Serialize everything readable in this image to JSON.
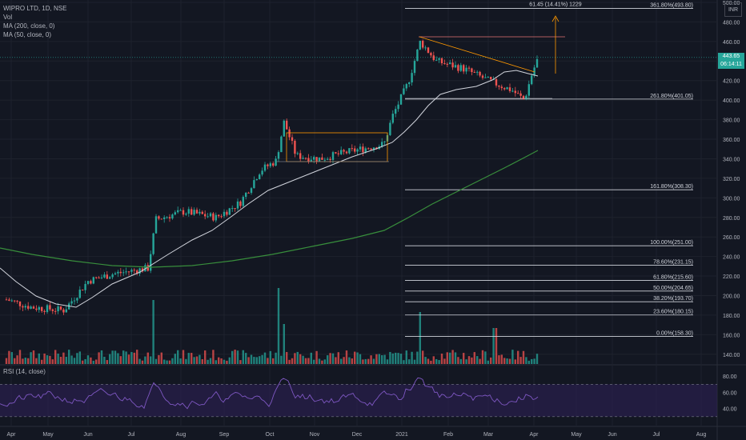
{
  "header": {
    "symbol": "WIPRO LTD, 1D, NSE",
    "vol_label": "Vol",
    "ma200_label": "MA (200, close, 0)",
    "ma50_label": "MA (50, close, 0)",
    "rsi_label": "RSI (14, close)",
    "currency_button": "INR"
  },
  "price_tag": {
    "price": "443.65",
    "countdown": "06:14:11"
  },
  "colors": {
    "background": "#131722",
    "up": "#26a69a",
    "down": "#ef5350",
    "ma50": "#d1d4dc",
    "ma200": "#388e3c",
    "rsi": "#7e57c2",
    "rsi_band": "#2a1f4d",
    "pattern": "#ff9800",
    "fib_line": "#d1d4dc"
  },
  "chart_data": {
    "type": "candlestick",
    "price_axis": {
      "ticks": [
        "500.00",
        "480.00",
        "460.00",
        "440.00",
        "420.00",
        "400.00",
        "380.00",
        "360.00",
        "340.00",
        "320.00",
        "300.00",
        "280.00",
        "260.00",
        "240.00",
        "220.00",
        "200.00",
        "180.00",
        "160.00",
        "140.00"
      ],
      "values": [
        500,
        480,
        460,
        440,
        420,
        400,
        380,
        360,
        340,
        320,
        300,
        280,
        260,
        240,
        220,
        200,
        180,
        160,
        140
      ]
    },
    "rsi_axis": {
      "ticks": [
        "80.00",
        "60.00",
        "40.00"
      ],
      "values": [
        80,
        60,
        40
      ],
      "upper_band": 70,
      "lower_band": 30
    },
    "time_axis": [
      "Apr",
      "May",
      "Jun",
      "Jul",
      "Aug",
      "Sep",
      "Oct",
      "Nov",
      "Dec",
      "2021",
      "Feb",
      "Mar",
      "Apr",
      "May",
      "Jun",
      "Jul",
      "Aug"
    ],
    "fibonacci": [
      {
        "label": "361.80%(493.80)",
        "value": 493.8
      },
      {
        "label": "261.80%(401.05)",
        "value": 401.05
      },
      {
        "label": "161.80%(308.30)",
        "value": 308.3
      },
      {
        "label": "100.00%(251.00)",
        "value": 251.0
      },
      {
        "label": "78.60%(231.15)",
        "value": 231.15
      },
      {
        "label": "61.80%(215.60)",
        "value": 215.6
      },
      {
        "label": "50.00%(204.65)",
        "value": 204.65
      },
      {
        "label": "38.20%(193.70)",
        "value": 193.7
      },
      {
        "label": "23.60%(180.15)",
        "value": 180.15
      },
      {
        "label": "0.00%(158.30)",
        "value": 158.3
      }
    ],
    "measure_label": "61.45 (14.41%) 1229",
    "last_price": 443.65,
    "ma50_points": [
      [
        0,
        330
      ],
      [
        0.04,
        305
      ],
      [
        0.07,
        285
      ],
      [
        0.1,
        262
      ],
      [
        0.125,
        250
      ],
      [
        0.15,
        230
      ],
      [
        0.18,
        218
      ],
      [
        0.2,
        208
      ],
      [
        0.24,
        198
      ],
      [
        0.28,
        190
      ],
      [
        0.3,
        188
      ],
      [
        0.33,
        178
      ],
      [
        0.36,
        172
      ],
      [
        0.4,
        165
      ],
      [
        0.43,
        155
      ],
      [
        0.46,
        140
      ],
      [
        0.5,
        132
      ],
      [
        0.54,
        125
      ],
      [
        0.57,
        120
      ],
      [
        0.6,
        115
      ],
      [
        0.63,
        108
      ],
      [
        0.67,
        98
      ],
      [
        0.7,
        90
      ],
      [
        0.73,
        82
      ],
      [
        0.77,
        75
      ],
      [
        0.8,
        68
      ],
      [
        0.83,
        58
      ],
      [
        0.87,
        48
      ],
      [
        0.9,
        40
      ],
      [
        0.94,
        30
      ],
      [
        1,
        20
      ]
    ],
    "ma200_points": [
      [
        0,
        310
      ],
      [
        0.06,
        320
      ],
      [
        0.12,
        328
      ],
      [
        0.18,
        332
      ],
      [
        0.24,
        334
      ],
      [
        0.3,
        333
      ],
      [
        0.36,
        330
      ],
      [
        0.42,
        327
      ],
      [
        0.48,
        322
      ],
      [
        0.54,
        316
      ],
      [
        0.6,
        308
      ],
      [
        0.66,
        298
      ],
      [
        0.72,
        285
      ],
      [
        0.78,
        270
      ],
      [
        0.84,
        255
      ],
      [
        0.9,
        240
      ],
      [
        0.96,
        222
      ],
      [
        1,
        210
      ]
    ]
  }
}
